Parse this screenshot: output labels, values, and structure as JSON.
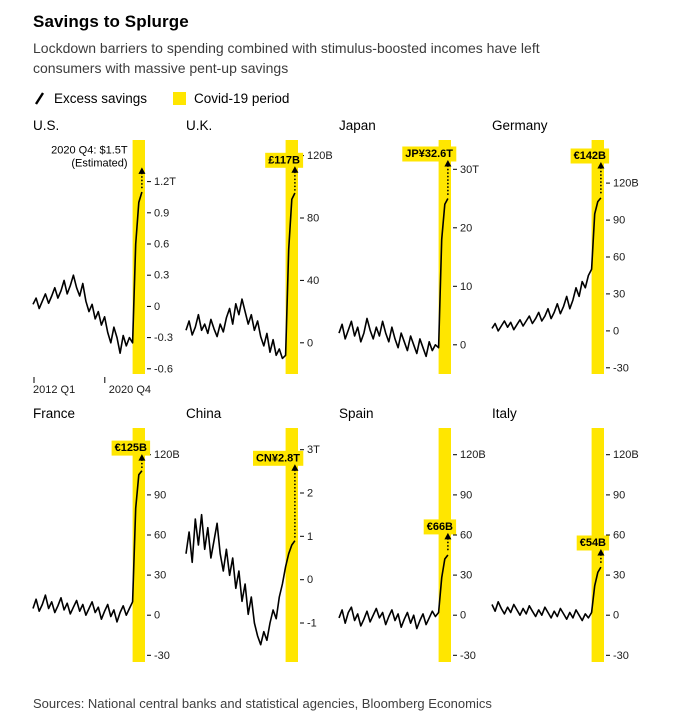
{
  "header": {
    "title": "Savings to Splurge",
    "subtitle": "Lockdown barriers to spending combined with stimulus-boosted incomes have left consumers with massive pent-up savings"
  },
  "legend": [
    {
      "label": "Excess savings",
      "type": "line"
    },
    {
      "label": "Covid-19 period",
      "type": "band"
    }
  ],
  "colors": {
    "covid_yellow": "#ffe600",
    "line": "#000000"
  },
  "source": "Sources: National central banks and statistical agencies, Bloomberg Economics",
  "chart_data": [
    {
      "type": "line",
      "title": "U.S.",
      "unit": "$T",
      "xlabel": "",
      "ylabel": "",
      "x_axis_labels": [
        "2012 Q1",
        "2020 Q4"
      ],
      "ylim": [
        -0.65,
        1.6
      ],
      "yticks": [
        {
          "v": 1.2,
          "label": "1.2T"
        },
        {
          "v": 0.9,
          "label": "0.9"
        },
        {
          "v": 0.6,
          "label": "0.6"
        },
        {
          "v": 0.3,
          "label": "0.3"
        },
        {
          "v": 0,
          "label": "0"
        },
        {
          "v": -0.3,
          "label": "-0.3"
        },
        {
          "v": -0.6,
          "label": "-0.6"
        }
      ],
      "values": [
        0.02,
        0.08,
        -0.02,
        0.05,
        0.12,
        0.03,
        0.1,
        0.18,
        0.08,
        0.15,
        0.25,
        0.12,
        0.2,
        0.3,
        0.18,
        0.1,
        0.22,
        0.05,
        -0.05,
        0.02,
        -0.12,
        -0.05,
        -0.18,
        -0.1,
        -0.25,
        -0.35,
        -0.2,
        -0.3,
        -0.45,
        -0.28,
        -0.38,
        -0.3,
        -0.35,
        0.6,
        1.0,
        1.1
      ],
      "estimate": 1.5,
      "annotation": [
        "2020 Q4: $1.5T",
        "(Estimated)"
      ],
      "annotation_style": "plain",
      "covid_band_quarters": 4
    },
    {
      "type": "line",
      "title": "U.K.",
      "unit": "£B",
      "xlabel": "",
      "ylabel": "",
      "ylim": [
        -20,
        130
      ],
      "yticks": [
        {
          "v": 120,
          "label": "120B"
        },
        {
          "v": 80,
          "label": "80"
        },
        {
          "v": 40,
          "label": "40"
        },
        {
          "v": 0,
          "label": "0"
        }
      ],
      "values": [
        8,
        14,
        5,
        10,
        18,
        8,
        12,
        6,
        15,
        9,
        4,
        12,
        7,
        16,
        22,
        12,
        25,
        18,
        28,
        20,
        12,
        18,
        8,
        14,
        4,
        -2,
        6,
        -6,
        2,
        -8,
        -4,
        -10,
        -8,
        60,
        92,
        96
      ],
      "estimate": 117,
      "annotation": [
        "£117B"
      ],
      "annotation_style": "highlight",
      "covid_band_quarters": 4
    },
    {
      "type": "line",
      "title": "Japan",
      "unit": "JP¥T",
      "xlabel": "",
      "ylabel": "",
      "ylim": [
        -5,
        35
      ],
      "yticks": [
        {
          "v": 30,
          "label": "30T"
        },
        {
          "v": 20,
          "label": "20"
        },
        {
          "v": 10,
          "label": "10"
        },
        {
          "v": 0,
          "label": "0"
        }
      ],
      "values": [
        2,
        3.5,
        1,
        2.5,
        4,
        1.5,
        3,
        0.5,
        2,
        4.5,
        2.5,
        1,
        3,
        1.5,
        4,
        2,
        0.5,
        3,
        1,
        -0.5,
        2,
        0.5,
        -1,
        1.5,
        0,
        -1.5,
        1,
        -0.5,
        -2,
        0.5,
        -1,
        0,
        -0.5,
        18,
        24,
        25
      ],
      "estimate": 32.6,
      "annotation": [
        "JP¥32.6T"
      ],
      "annotation_style": "highlight",
      "covid_band_quarters": 4
    },
    {
      "type": "line",
      "title": "Germany",
      "unit": "€B",
      "xlabel": "",
      "ylabel": "",
      "ylim": [
        -35,
        155
      ],
      "yticks": [
        {
          "v": 120,
          "label": "120B"
        },
        {
          "v": 90,
          "label": "90"
        },
        {
          "v": 60,
          "label": "60"
        },
        {
          "v": 30,
          "label": "30"
        },
        {
          "v": 0,
          "label": "0"
        },
        {
          "v": -30,
          "label": "-30"
        }
      ],
      "values": [
        2,
        6,
        0,
        4,
        8,
        3,
        7,
        1,
        5,
        9,
        4,
        8,
        12,
        6,
        10,
        15,
        8,
        12,
        18,
        10,
        15,
        22,
        14,
        20,
        28,
        18,
        25,
        35,
        28,
        40,
        35,
        45,
        50,
        95,
        105,
        108
      ],
      "estimate": 142,
      "annotation": [
        "€142B"
      ],
      "annotation_style": "highlight",
      "covid_band_quarters": 4
    },
    {
      "type": "line",
      "title": "France",
      "unit": "€B",
      "xlabel": "",
      "ylabel": "",
      "ylim": [
        -35,
        140
      ],
      "yticks": [
        {
          "v": 120,
          "label": "120B"
        },
        {
          "v": 90,
          "label": "90"
        },
        {
          "v": 60,
          "label": "60"
        },
        {
          "v": 30,
          "label": "30"
        },
        {
          "v": 0,
          "label": "0"
        },
        {
          "v": -30,
          "label": "-30"
        }
      ],
      "values": [
        5,
        12,
        3,
        8,
        15,
        5,
        10,
        2,
        7,
        13,
        4,
        9,
        1,
        6,
        11,
        3,
        8,
        0,
        5,
        10,
        2,
        6,
        -3,
        3,
        8,
        -1,
        4,
        -5,
        2,
        7,
        0,
        5,
        10,
        80,
        105,
        108
      ],
      "estimate": 125,
      "annotation": [
        "€125B"
      ],
      "annotation_style": "highlight",
      "covid_band_quarters": 4
    },
    {
      "type": "line",
      "title": "China",
      "unit": "CN¥T",
      "xlabel": "",
      "ylabel": "",
      "ylim": [
        -1.9,
        3.5
      ],
      "yticks": [
        {
          "v": 3,
          "label": "3T"
        },
        {
          "v": 2,
          "label": "2"
        },
        {
          "v": 1,
          "label": "1"
        },
        {
          "v": 0,
          "label": "0"
        },
        {
          "v": -1,
          "label": "-1"
        }
      ],
      "values": [
        0.6,
        1.1,
        0.4,
        1.4,
        0.8,
        1.5,
        0.7,
        1.2,
        0.5,
        0.9,
        1.3,
        0.6,
        0.2,
        0.7,
        0.1,
        0.5,
        -0.2,
        0.2,
        -0.5,
        -0.1,
        -0.8,
        -0.4,
        -1.0,
        -1.3,
        -1.5,
        -1.2,
        -1.4,
        -1.0,
        -0.7,
        -0.9,
        -0.4,
        -0.1,
        0.3,
        0.6,
        0.8,
        0.9
      ],
      "estimate": 2.8,
      "annotation": [
        "CN¥2.8T"
      ],
      "annotation_style": "highlight",
      "covid_band_quarters": 4
    },
    {
      "type": "line",
      "title": "Spain",
      "unit": "€B",
      "xlabel": "",
      "ylabel": "",
      "ylim": [
        -35,
        140
      ],
      "yticks": [
        {
          "v": 120,
          "label": "120B"
        },
        {
          "v": 90,
          "label": "90"
        },
        {
          "v": 60,
          "label": "60"
        },
        {
          "v": 30,
          "label": "30"
        },
        {
          "v": 0,
          "label": "0"
        },
        {
          "v": -30,
          "label": "-30"
        }
      ],
      "values": [
        -2,
        4,
        -6,
        2,
        6,
        -4,
        1,
        -8,
        -3,
        3,
        -5,
        0,
        5,
        -2,
        2,
        -7,
        -1,
        4,
        -4,
        1,
        -9,
        -3,
        2,
        -6,
        0,
        -10,
        -4,
        1,
        -7,
        -2,
        3,
        -1,
        2,
        28,
        42,
        45
      ],
      "estimate": 66,
      "annotation": [
        "€66B"
      ],
      "annotation_style": "highlight",
      "covid_band_quarters": 4
    },
    {
      "type": "line",
      "title": "Italy",
      "unit": "€B",
      "xlabel": "",
      "ylabel": "",
      "ylim": [
        -35,
        140
      ],
      "yticks": [
        {
          "v": 120,
          "label": "120B"
        },
        {
          "v": 90,
          "label": "90"
        },
        {
          "v": 60,
          "label": "60"
        },
        {
          "v": 30,
          "label": "30"
        },
        {
          "v": 0,
          "label": "0"
        },
        {
          "v": -30,
          "label": "-30"
        }
      ],
      "values": [
        8,
        3,
        10,
        5,
        1,
        6,
        2,
        8,
        4,
        0,
        5,
        1,
        7,
        3,
        -1,
        4,
        0,
        6,
        2,
        -2,
        3,
        -1,
        5,
        1,
        -3,
        2,
        -2,
        4,
        0,
        -4,
        1,
        -2,
        2,
        22,
        32,
        36
      ],
      "estimate": 54,
      "annotation": [
        "€54B"
      ],
      "annotation_style": "highlight",
      "covid_band_quarters": 4
    }
  ]
}
